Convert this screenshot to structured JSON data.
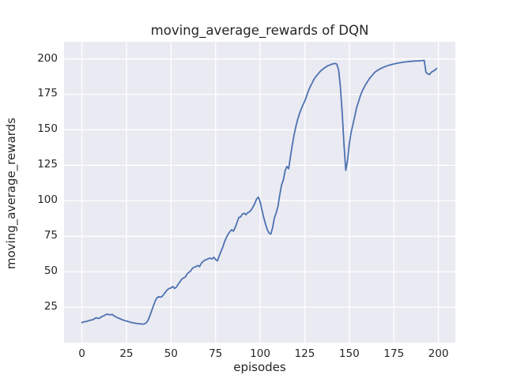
{
  "figure": {
    "background": "#ffffff"
  },
  "chart_data": {
    "type": "line",
    "title": "moving_average_rewards of DQN",
    "xlabel": "episodes",
    "ylabel": "moving_average_rewards",
    "x_ticks": [
      0,
      25,
      50,
      75,
      100,
      125,
      150,
      175,
      200
    ],
    "y_ticks": [
      25,
      50,
      75,
      100,
      125,
      150,
      175,
      200
    ],
    "xlim": [
      -10.0,
      209.5
    ],
    "ylim": [
      0,
      212
    ],
    "grid": true,
    "legend_position": "none",
    "plot_bg_color": "#eaeaf2",
    "grid_color": "#ffffff",
    "line_color": "#4c72b0",
    "text_color": "#262626",
    "series": [
      {
        "name": "moving_average_rewards",
        "x_start": 0,
        "x_step": 1,
        "values": [
          14.2,
          14.6,
          14.9,
          15.1,
          15.6,
          15.9,
          16.1,
          16.8,
          17.6,
          17.1,
          17.3,
          18.3,
          18.8,
          19.4,
          20.1,
          19.8,
          19.6,
          19.9,
          19.0,
          18.2,
          17.6,
          17.1,
          16.5,
          16.0,
          15.6,
          15.3,
          14.9,
          14.5,
          14.2,
          13.9,
          13.7,
          13.5,
          13.4,
          13.2,
          13.1,
          13.2,
          13.9,
          15.5,
          18.5,
          22.0,
          25.5,
          29.0,
          31.5,
          32.4,
          32.0,
          32.6,
          34.2,
          35.8,
          37.4,
          38.2,
          38.6,
          39.6,
          38.2,
          39.2,
          41.2,
          42.8,
          44.8,
          45.6,
          46.2,
          48.4,
          49.6,
          50.4,
          52.4,
          53.2,
          53.6,
          54.4,
          53.6,
          56.0,
          57.2,
          58.2,
          58.6,
          59.2,
          59.6,
          59.0,
          60.2,
          58.6,
          57.6,
          61.0,
          64.2,
          67.2,
          71.0,
          74.0,
          76.4,
          78.2,
          79.6,
          78.6,
          81.2,
          84.6,
          88.2,
          88.6,
          90.6,
          91.2,
          90.2,
          91.6,
          92.2,
          93.6,
          95.6,
          98.2,
          101.2,
          102.6,
          99.2,
          93.6,
          88.2,
          83.6,
          79.6,
          77.2,
          76.6,
          81.2,
          88.0,
          91.6,
          96.2,
          104.2,
          111.2,
          114.6,
          121.2,
          124.2,
          122.6,
          131.2,
          139.2,
          146.2,
          152.2,
          157.2,
          161.2,
          164.6,
          167.6,
          170.2,
          173.6,
          177.2,
          180.2,
          182.6,
          185.2,
          187.2,
          188.6,
          190.2,
          191.6,
          192.6,
          193.6,
          194.4,
          195.2,
          195.6,
          196.2,
          196.5,
          196.8,
          196.3,
          192.2,
          180.2,
          162.2,
          140.2,
          121.5,
          128.2,
          140.2,
          148.2,
          153.6,
          159.2,
          165.2,
          169.2,
          173.2,
          176.6,
          179.2,
          181.6,
          183.6,
          185.6,
          187.2,
          188.6,
          190.2,
          191.2,
          192.0,
          192.8,
          193.4,
          194.0,
          194.5,
          195.0,
          195.4,
          195.8,
          196.1,
          196.4,
          196.7,
          197.0,
          197.2,
          197.4,
          197.6,
          197.8,
          197.9,
          198.1,
          198.2,
          198.3,
          198.4,
          198.5,
          198.5,
          198.6,
          198.7,
          198.8,
          199.0,
          190.6,
          189.4,
          189.0,
          190.6,
          191.3,
          192.1,
          193.2
        ]
      }
    ]
  }
}
